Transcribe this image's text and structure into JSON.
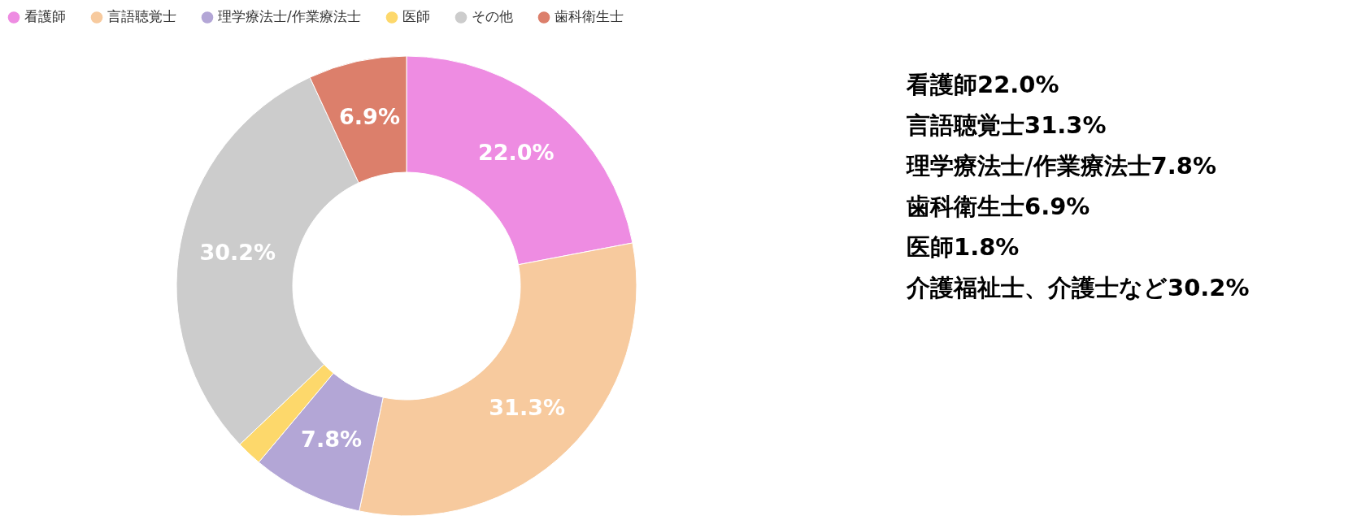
{
  "chart_data": {
    "type": "donut",
    "categories": [
      "看護師",
      "言語聴覚士",
      "理学療法士/作業療法士",
      "医師",
      "その他",
      "歯科衛生士"
    ],
    "values": [
      22.0,
      31.3,
      7.8,
      1.8,
      30.2,
      6.9
    ],
    "colors": [
      "#ee8ce2",
      "#f7ca9e",
      "#b3a6d6",
      "#fdd86b",
      "#cccccc",
      "#dc7f6b"
    ],
    "value_labels": [
      "22.0%",
      "31.3%",
      "7.8%",
      null,
      "30.2%",
      "6.9%"
    ],
    "legend": "top left",
    "annotations": [
      "看護師22.0%",
      "言語聴覚士31.3%",
      "理学療法士/作業療法士7.8%",
      "歯科衛生士6.9%",
      "医師1.8%",
      "介護福祉士、介護士など30.2%"
    ]
  }
}
